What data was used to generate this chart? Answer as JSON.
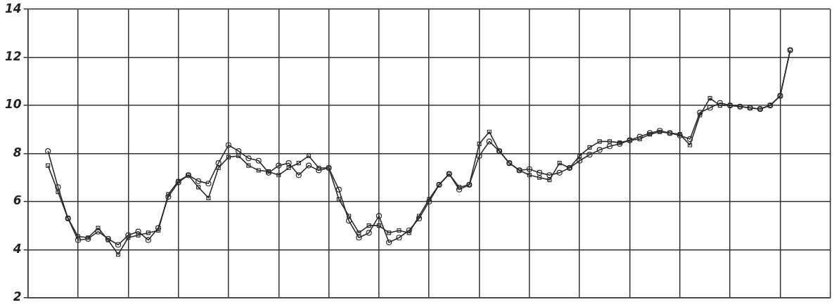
{
  "chart_data": {
    "type": "line",
    "categories": [
      null,
      null,
      null,
      null,
      null,
      null,
      null,
      null,
      null,
      null,
      null,
      null,
      null,
      null,
      null,
      null,
      null,
      null,
      null,
      null,
      null,
      null,
      null,
      null,
      null,
      null,
      null,
      null,
      null,
      null,
      null,
      null,
      null,
      null,
      null,
      null,
      null,
      null,
      null,
      null,
      null,
      null,
      null,
      null,
      null,
      null,
      null,
      null,
      null,
      null,
      null,
      null,
      null,
      null,
      null,
      null,
      null,
      null,
      null,
      null,
      null,
      null,
      null,
      null,
      null,
      null,
      null,
      null,
      null,
      null,
      null,
      null,
      null,
      null,
      null,
      null,
      null,
      null,
      null,
      null,
      null
    ],
    "series": [
      {
        "color": "#2b2b2b",
        "marker": "circle",
        "values": [
          null,
          null,
          8.1,
          6.6,
          5.3,
          4.4,
          4.45,
          4.75,
          4.45,
          4.2,
          4.6,
          4.75,
          4.4,
          4.9,
          6.2,
          6.8,
          7.1,
          6.85,
          6.75,
          7.6,
          8.35,
          8.1,
          7.8,
          7.7,
          7.2,
          7.5,
          7.6,
          7.1,
          7.5,
          7.3,
          7.4,
          6.5,
          5.2,
          4.5,
          4.7,
          5.4,
          4.3,
          4.5,
          4.8,
          5.3,
          6.0,
          6.7,
          7.15,
          6.5,
          6.7,
          7.9,
          8.5,
          8.1,
          7.6,
          7.3,
          7.35,
          7.2,
          7.1,
          7.2,
          7.4,
          7.7,
          7.95,
          8.15,
          8.3,
          8.4,
          8.55,
          8.7,
          8.85,
          8.95,
          8.85,
          8.75,
          8.6,
          9.7,
          9.9,
          10.1,
          10.0,
          9.95,
          9.9,
          9.85,
          10.0,
          10.4,
          12.3,
          null,
          null,
          null,
          null
        ]
      },
      {
        "color": "#2b2b2b",
        "marker": "square",
        "values": [
          null,
          null,
          7.5,
          6.4,
          5.3,
          4.55,
          4.5,
          4.9,
          4.4,
          3.8,
          4.5,
          4.6,
          4.7,
          4.8,
          6.3,
          6.85,
          7.1,
          6.6,
          6.15,
          7.4,
          7.85,
          7.9,
          7.5,
          7.3,
          7.25,
          7.1,
          7.4,
          7.6,
          7.9,
          7.4,
          7.4,
          6.1,
          5.4,
          4.7,
          5.0,
          5.0,
          4.7,
          4.8,
          4.7,
          5.4,
          6.1,
          6.7,
          7.15,
          6.6,
          6.7,
          8.4,
          8.9,
          8.1,
          7.6,
          7.3,
          7.1,
          7.0,
          6.9,
          7.6,
          7.4,
          7.9,
          8.25,
          8.5,
          8.5,
          8.45,
          8.55,
          8.6,
          8.8,
          8.9,
          8.85,
          8.8,
          8.35,
          9.6,
          10.3,
          10.0,
          10.0,
          9.95,
          9.9,
          9.85,
          10.0,
          10.4,
          12.3,
          null,
          null,
          null,
          null
        ]
      }
    ],
    "ylim": [
      2,
      14
    ],
    "yticks": [
      2,
      4,
      6,
      8,
      10,
      12,
      14
    ],
    "grid": true,
    "line_style": "solid"
  }
}
